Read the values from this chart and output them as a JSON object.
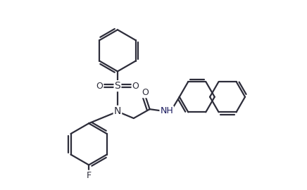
{
  "bg_color": "#ffffff",
  "line_color": "#2d2d3a",
  "bond_width": 1.6,
  "dpi": 100,
  "figsize": [
    4.36,
    2.7
  ],
  "xlim": [
    0.0,
    1.0
  ],
  "ylim": [
    0.0,
    1.0
  ]
}
